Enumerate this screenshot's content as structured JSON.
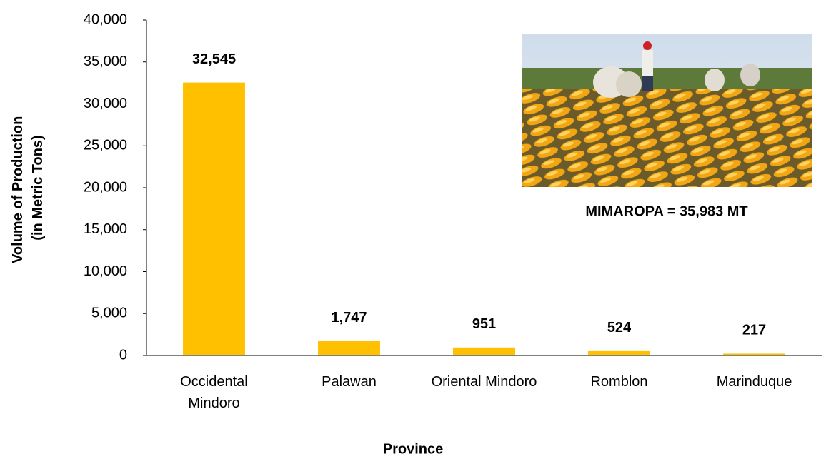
{
  "chart_data": {
    "type": "bar",
    "categories": [
      "Occidental\nMindoro",
      "Palawan",
      "Oriental Mindoro",
      "Romblon",
      "Marinduque"
    ],
    "values": [
      32545,
      1747,
      951,
      524,
      217
    ],
    "value_labels": [
      "32,545",
      "1,747",
      "951",
      "524",
      "217"
    ],
    "color": "#ffc000",
    "ylim": [
      0,
      40000
    ],
    "yticks": [
      0,
      {
        "value": 5000,
        "label": "5,000"
      },
      {
        "value": 10000,
        "label": "10,000"
      },
      {
        "value": 15000,
        "label": "15,000"
      },
      {
        "value": 20000,
        "label": "20,000"
      },
      {
        "value": 25000,
        "label": "25,000"
      },
      {
        "value": 30000,
        "label": "30,000"
      },
      {
        "value": 35000,
        "label": "35,000"
      },
      {
        "value": 40000,
        "label": "40,000"
      }
    ],
    "ylabel": [
      "Volume of Production",
      "(in Metric Tons)"
    ],
    "xlabel": "Province",
    "annotation": "MIMAROPA = 35,983 MT",
    "grid": false
  }
}
